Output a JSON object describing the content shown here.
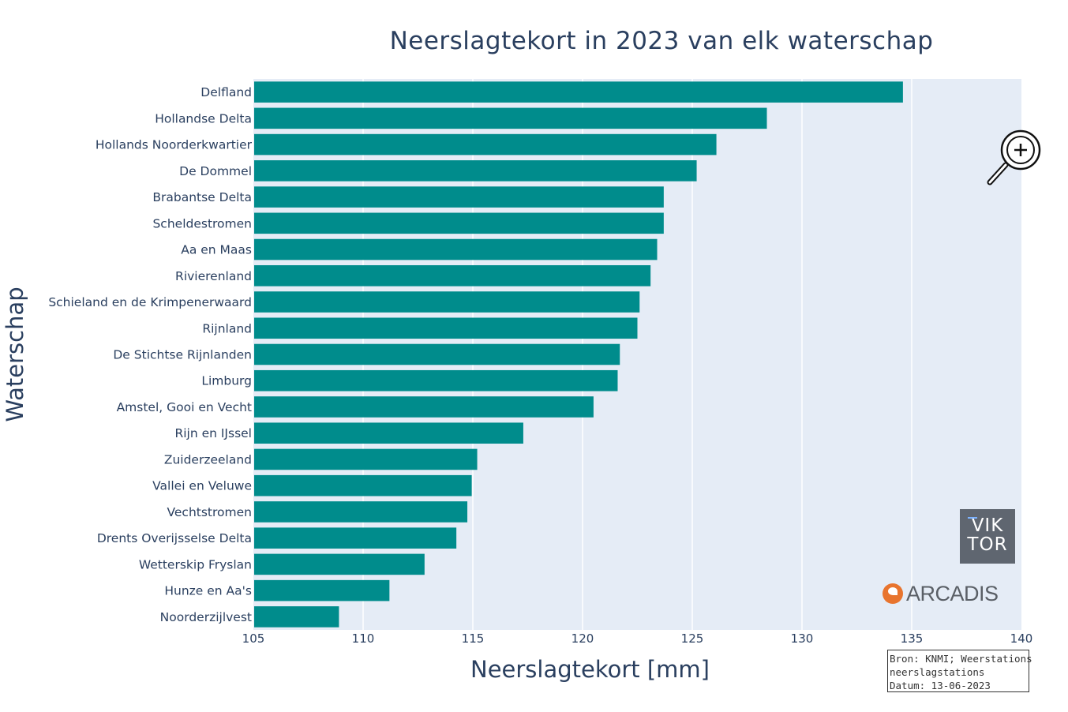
{
  "chart_data": {
    "type": "bar",
    "orientation": "horizontal",
    "title": "Neerslagtekort in 2023 van elk waterschap",
    "xlabel": "Neerslagtekort [mm]",
    "ylabel": "Waterschap",
    "xlim": [
      105,
      140
    ],
    "xticks": [
      105,
      110,
      115,
      120,
      125,
      130,
      135,
      140
    ],
    "bar_color": "#008c8c",
    "plot_background": "#e5ecf6",
    "grid": true,
    "categories": [
      "Delfland",
      "Hollandse Delta",
      "Hollands Noorderkwartier",
      "De Dommel",
      "Brabantse Delta",
      "Scheldestromen",
      "Aa en Maas",
      "Rivierenland",
      "Schieland en de Krimpenerwaard",
      "Rijnland",
      "De Stichtse Rijnlanden",
      "Limburg",
      "Amstel, Gooi en Vecht",
      "Rijn en IJssel",
      "Zuiderzeeland",
      "Vallei en Veluwe",
      "Vechtstromen",
      "Drents Overijsselse Delta",
      "Wetterskip Fryslan",
      "Hunze en Aa's",
      "Noorderzijlvest"
    ],
    "values": [
      134.6,
      128.4,
      126.1,
      125.2,
      123.7,
      123.7,
      123.4,
      123.1,
      122.6,
      122.5,
      121.7,
      121.6,
      120.5,
      117.3,
      115.2,
      114.95,
      114.75,
      114.25,
      112.8,
      111.2,
      108.9
    ]
  },
  "source": {
    "line1": "Bron: KNMI; Weerstations",
    "line2": "neerslagstations",
    "line3": "Datum: 13-06-2023"
  },
  "logos": {
    "viktor_line1": "VIK",
    "viktor_line2": "TOR",
    "arcadis": "ARCADIS"
  },
  "icons": {
    "zoom": "zoom-in-icon"
  }
}
